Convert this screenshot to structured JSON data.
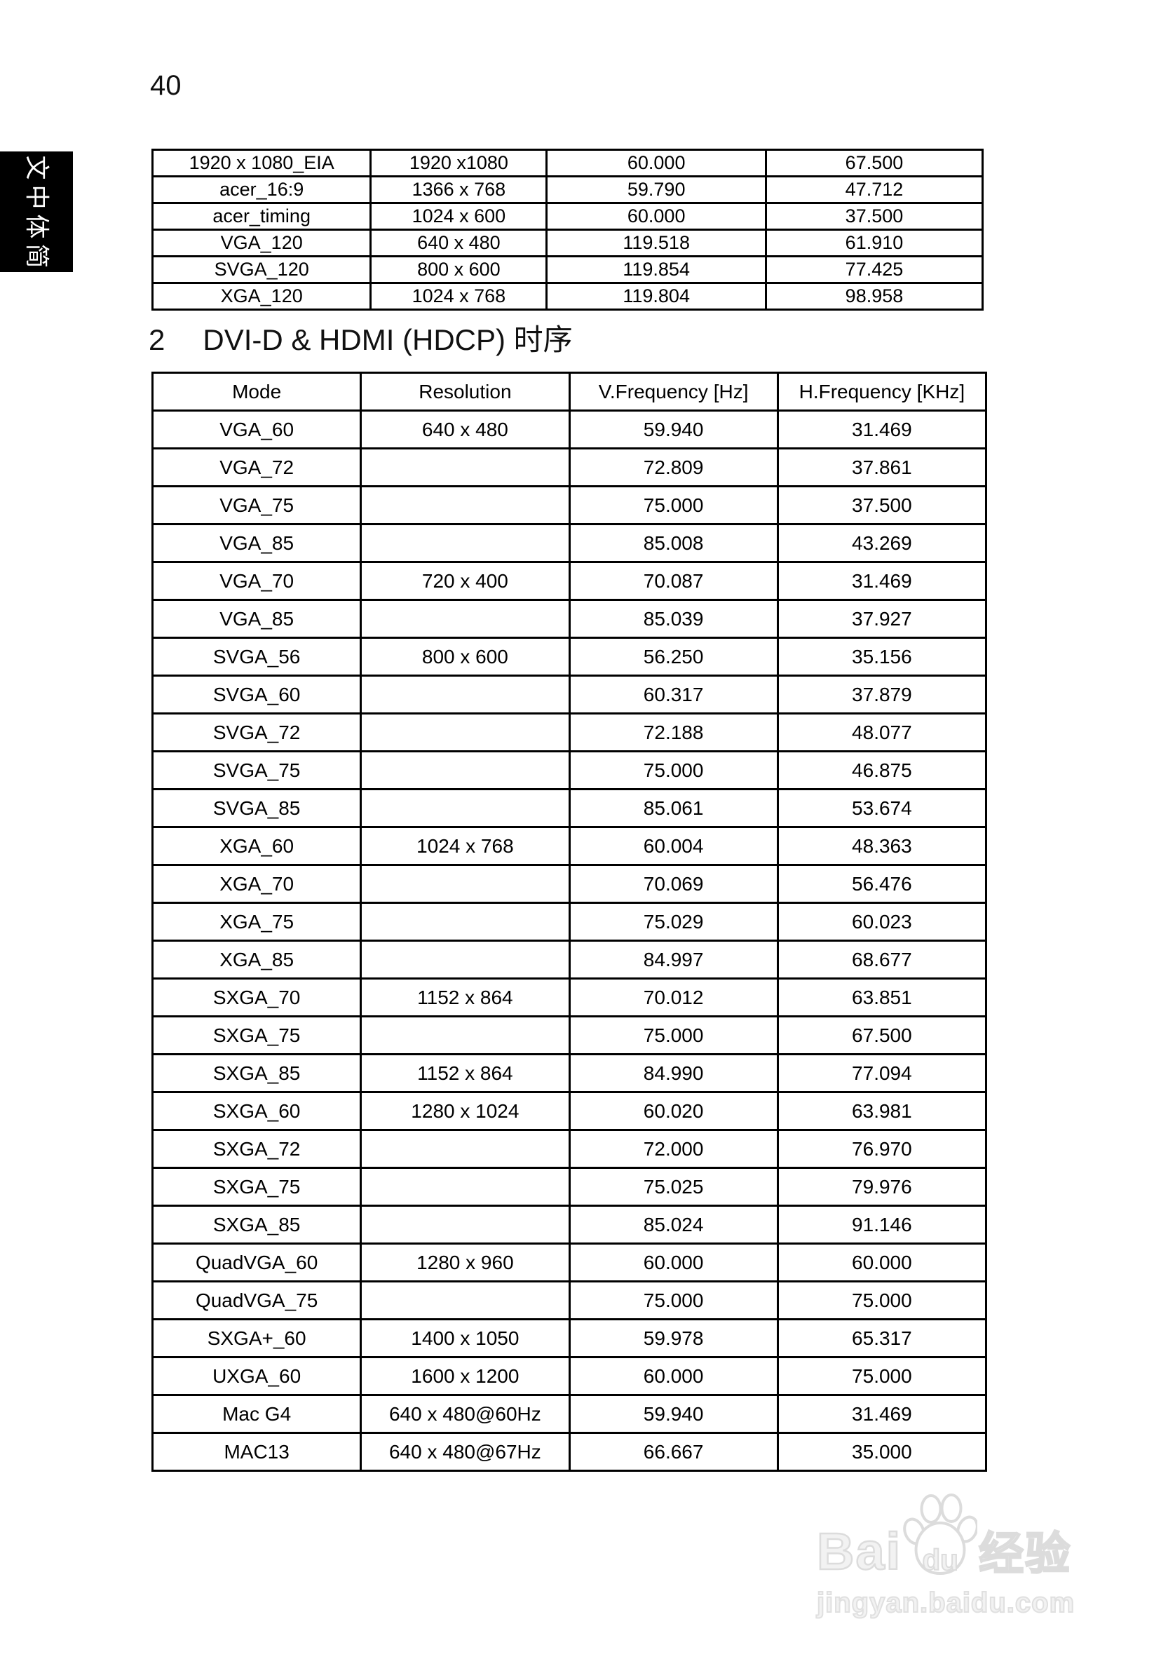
{
  "page": {
    "number": "40"
  },
  "sidebar_tab": {
    "text": "简体中文"
  },
  "section_heading": {
    "number": "2",
    "title": "DVI-D & HDMI (HDCP) 时序"
  },
  "analog_table": {
    "rows": [
      [
        "1920 x 1080_EIA",
        "1920 x1080",
        "60.000",
        "67.500"
      ],
      [
        "acer_16:9",
        "1366 x 768",
        "59.790",
        "47.712"
      ],
      [
        "acer_timing",
        "1024 x 600",
        "60.000",
        "37.500"
      ],
      [
        "VGA_120",
        "640 x 480",
        "119.518",
        "61.910"
      ],
      [
        "SVGA_120",
        "800 x 600",
        "119.854",
        "77.425"
      ],
      [
        "XGA_120",
        "1024 x 768",
        "119.804",
        "98.958"
      ]
    ]
  },
  "dvi_hdmi_table": {
    "headers": [
      "Mode",
      "Resolution",
      "V.Frequency [Hz]",
      "H.Frequency [KHz]"
    ],
    "rows": [
      [
        "VGA_60",
        "640 x 480",
        "59.940",
        "31.469"
      ],
      [
        "VGA_72",
        "",
        "72.809",
        "37.861"
      ],
      [
        "VGA_75",
        "",
        "75.000",
        "37.500"
      ],
      [
        "VGA_85",
        "",
        "85.008",
        "43.269"
      ],
      [
        "VGA_70",
        "720 x 400",
        "70.087",
        "31.469"
      ],
      [
        "VGA_85",
        "",
        "85.039",
        "37.927"
      ],
      [
        "SVGA_56",
        "800 x 600",
        "56.250",
        "35.156"
      ],
      [
        "SVGA_60",
        "",
        "60.317",
        "37.879"
      ],
      [
        "SVGA_72",
        "",
        "72.188",
        "48.077"
      ],
      [
        "SVGA_75",
        "",
        "75.000",
        "46.875"
      ],
      [
        "SVGA_85",
        "",
        "85.061",
        "53.674"
      ],
      [
        "XGA_60",
        "1024 x 768",
        "60.004",
        "48.363"
      ],
      [
        "XGA_70",
        "",
        "70.069",
        "56.476"
      ],
      [
        "XGA_75",
        "",
        "75.029",
        "60.023"
      ],
      [
        "XGA_85",
        "",
        "84.997",
        "68.677"
      ],
      [
        "SXGA_70",
        "1152 x 864",
        "70.012",
        "63.851"
      ],
      [
        "SXGA_75",
        "",
        "75.000",
        "67.500"
      ],
      [
        "SXGA_85",
        "1152 x 864",
        "84.990",
        "77.094"
      ],
      [
        "SXGA_60",
        "1280 x 1024",
        "60.020",
        "63.981"
      ],
      [
        "SXGA_72",
        "",
        "72.000",
        "76.970"
      ],
      [
        "SXGA_75",
        "",
        "75.025",
        "79.976"
      ],
      [
        "SXGA_85",
        "",
        "85.024",
        "91.146"
      ],
      [
        "QuadVGA_60",
        "1280 x 960",
        "60.000",
        "60.000"
      ],
      [
        "QuadVGA_75",
        "",
        "75.000",
        "75.000"
      ],
      [
        "SXGA+_60",
        "1400 x 1050",
        "59.978",
        "65.317"
      ],
      [
        "UXGA_60",
        "1600 x 1200",
        "60.000",
        "75.000"
      ],
      [
        "Mac G4",
        "640 x 480@60Hz",
        "59.940",
        "31.469"
      ],
      [
        "MAC13",
        "640 x 480@67Hz",
        "66.667",
        "35.000"
      ]
    ]
  },
  "watermark": {
    "brand_prefix": "Bai",
    "brand_mid": "du",
    "brand_suffix": "经验",
    "url": "jingyan.baidu.com",
    "stroke_color": "#dcdcdc"
  },
  "colors": {
    "text": "#000000",
    "border": "#000000",
    "tab_bg": "#000000",
    "tab_text": "#ffffff",
    "watermark": "#dcdcdc"
  }
}
